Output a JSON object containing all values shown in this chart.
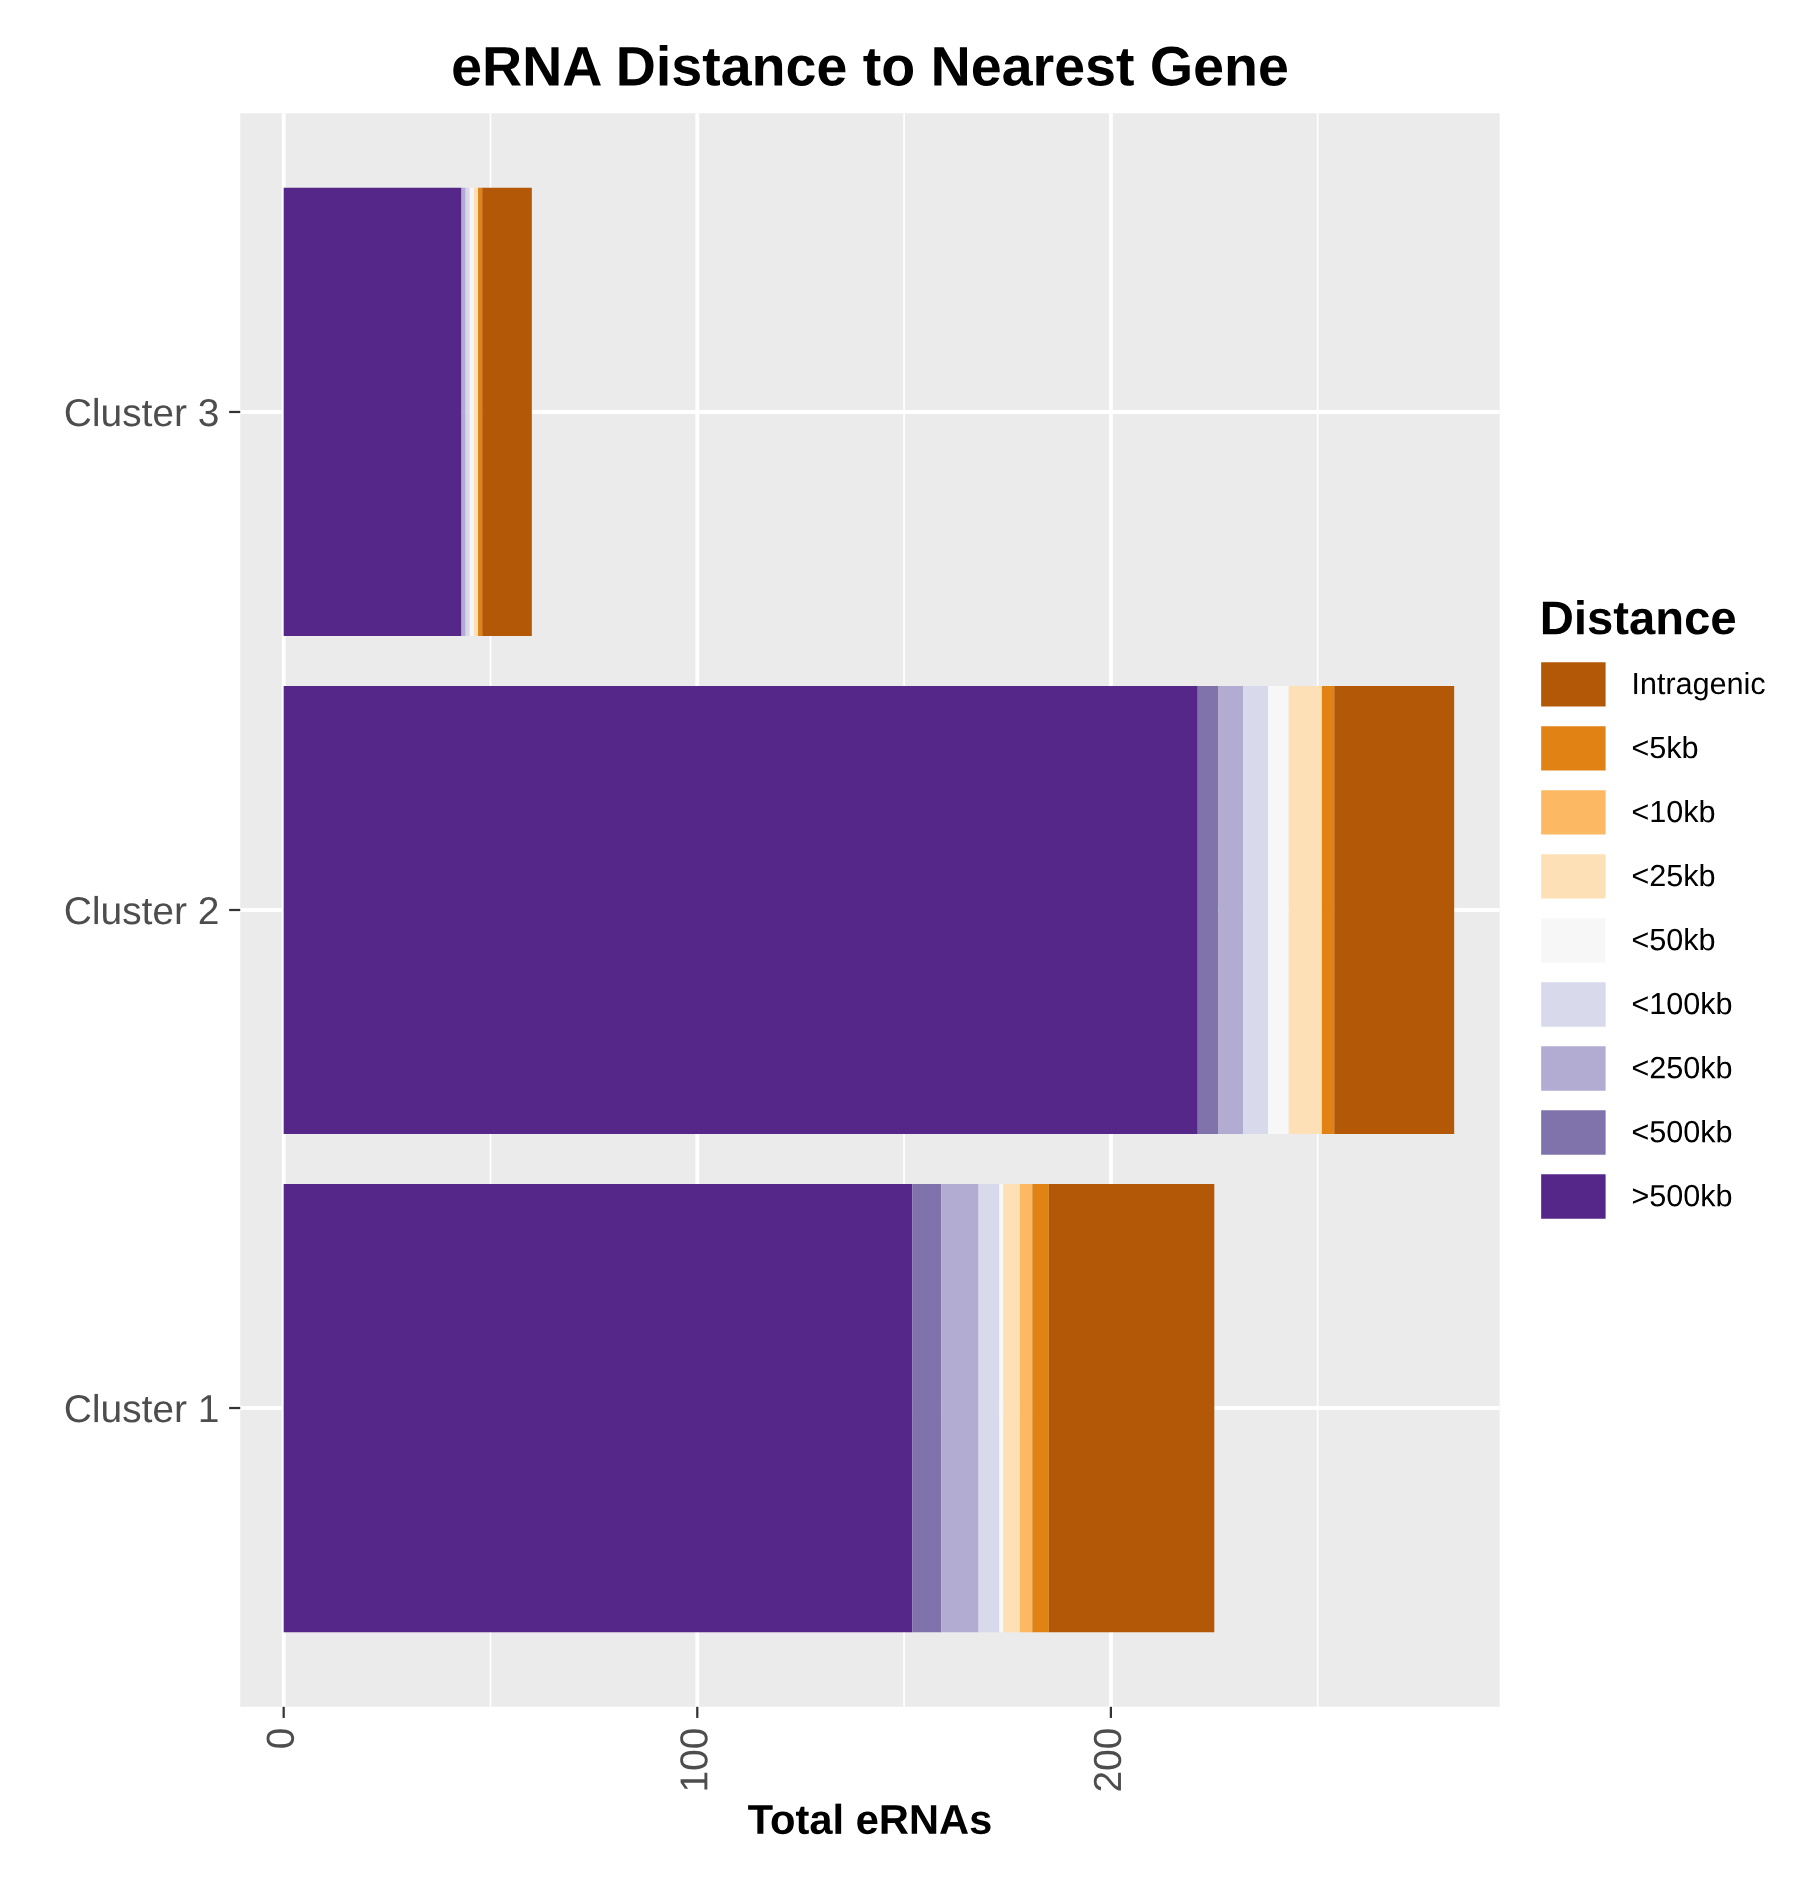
{
  "chart_data": {
    "type": "bar",
    "orientation": "horizontal",
    "stacked": true,
    "title": "eRNA Distance to Nearest Gene",
    "xlabel": "Total eRNAs",
    "legend_title": "Distance",
    "legend": "right",
    "grid": true,
    "categories": [
      "Cluster 3",
      "Cluster 2",
      "Cluster 1"
    ],
    "xlim": [
      -10.5,
      294
    ],
    "xticks": [
      0,
      100,
      200
    ],
    "series": [
      {
        "name": ">500kb",
        "color": "#542788",
        "values": [
          43,
          221,
          152
        ]
      },
      {
        "name": "<500kb",
        "color": "#8073ac",
        "values": [
          0,
          5,
          7
        ]
      },
      {
        "name": "<250kb",
        "color": "#b2abd2",
        "values": [
          1,
          6,
          9
        ]
      },
      {
        "name": "<100kb",
        "color": "#d8daeb",
        "values": [
          1,
          6,
          5
        ]
      },
      {
        "name": "<50kb",
        "color": "#f7f7f7",
        "values": [
          1,
          5,
          1
        ]
      },
      {
        "name": "<25kb",
        "color": "#fee0b6",
        "values": [
          1,
          8,
          4
        ]
      },
      {
        "name": "<10kb",
        "color": "#fdb863",
        "values": [
          0,
          0,
          3
        ]
      },
      {
        "name": "<5kb",
        "color": "#e08214",
        "values": [
          1,
          3,
          4
        ]
      },
      {
        "name": "Intragenic",
        "color": "#b35806",
        "values": [
          12,
          29,
          40
        ]
      }
    ]
  }
}
